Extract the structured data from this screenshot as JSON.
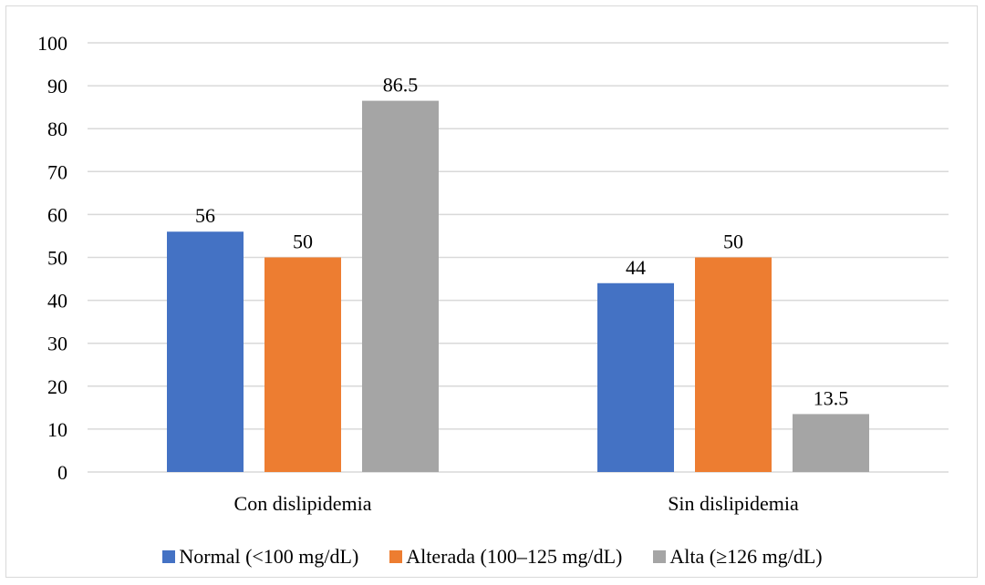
{
  "chart_data": {
    "type": "bar",
    "categories": [
      "Con dislipidemia",
      "Sin dislipidemia"
    ],
    "series": [
      {
        "name": "Normal (<100 mg/dL)",
        "values": [
          56,
          44
        ],
        "labels": [
          "56",
          "44"
        ],
        "color": "#4472c4"
      },
      {
        "name": "Alterada (100–125 mg/dL)",
        "values": [
          50,
          50
        ],
        "labels": [
          "50",
          "50"
        ],
        "color": "#ed7d31"
      },
      {
        "name": "Alta (≥126 mg/dL)",
        "values": [
          86.5,
          13.5
        ],
        "labels": [
          "86.5",
          "13.5"
        ],
        "color": "#a5a5a5"
      }
    ],
    "y_ticks": [
      "0",
      "10",
      "20",
      "30",
      "40",
      "50",
      "60",
      "70",
      "80",
      "90",
      "100"
    ],
    "ylim": [
      0,
      100
    ],
    "grid": true,
    "gridline_color": "#d9d9d9",
    "legend_position": "bottom",
    "title": "",
    "xlabel": "",
    "ylabel": ""
  }
}
